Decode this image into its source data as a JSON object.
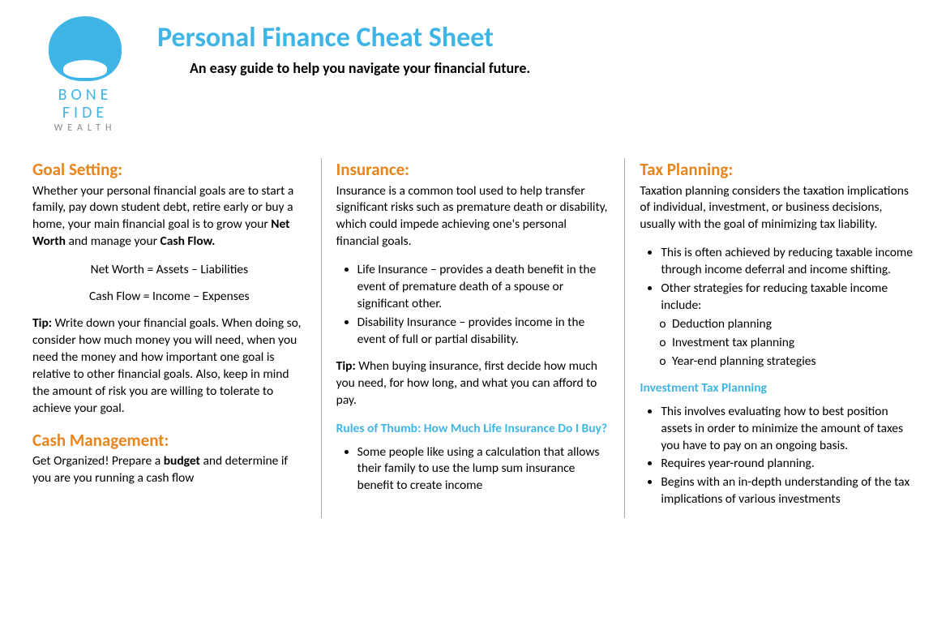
{
  "logo": {
    "line1": "BONE",
    "line2": "FIDE",
    "line3": "WEALTH"
  },
  "header": {
    "title": "Personal Finance Cheat Sheet",
    "subtitle": "An easy guide to help you navigate your financial future."
  },
  "colors": {
    "accent_blue": "#3fb5e6",
    "accent_orange": "#e8841c",
    "text": "#000000",
    "divider": "#aaaaaa"
  },
  "col1": {
    "section1_title": "Goal Setting:",
    "section1_intro_a": "Whether your personal financial goals are to start a family, pay down student debt, retire early or buy a home, your main financial goal is to grow your ",
    "section1_bold1": "Net Worth",
    "section1_intro_b": " and manage your ",
    "section1_bold2": "Cash Flow.",
    "formula1": "Net Worth = Assets – Liabilities",
    "formula2": "Cash Flow = Income – Expenses",
    "tip_label": "Tip:",
    "tip_text": " Write down your financial goals.  When doing so, consider how much money you will need, when you need the money and how important one goal is relative to other financial goals.  Also, keep in mind the amount of risk you are willing to tolerate to achieve your goal.",
    "section2_title": "Cash Management:",
    "section2_a": "Get Organized! Prepare a ",
    "section2_bold": "budget",
    "section2_b": " and determine if you are you running a cash flow"
  },
  "col2": {
    "section1_title": "Insurance:",
    "intro": "Insurance is a common tool used to help transfer significant risks such as premature death or disability, which could impede achieving one's personal financial goals.",
    "bullets": [
      "Life Insurance – provides a death benefit in the event of premature death of a spouse or significant other.",
      "Disability Insurance – provides income in the event of full or partial disability."
    ],
    "tip_label": "Tip:",
    "tip_text": " When buying insurance, first decide how much you need, for how long, and what you can afford to pay.",
    "rules_heading": "Rules of Thumb: How Much Life Insurance Do I Buy?",
    "rules_bullets": [
      "Some people like using a calculation that allows their family to use the lump sum insurance benefit to create income"
    ]
  },
  "col3": {
    "section1_title": "Tax Planning:",
    "intro": "Taxation planning considers the taxation implications of individual, investment, or business decisions, usually with the goal of minimizing tax liability.",
    "bullets1": [
      "This is often achieved by reducing taxable income through income deferral and income shifting.",
      "Other strategies for reducing taxable income include:"
    ],
    "sub_bullets": [
      "Deduction planning",
      "Investment tax planning",
      "Year-end planning strategies"
    ],
    "sub_heading": "Investment Tax Planning",
    "bullets2": [
      "This involves evaluating how to best position assets in order to minimize the amount of taxes you have to pay on an ongoing basis.",
      "Requires year-round planning.",
      "Begins with an in-depth understanding of the tax implications of various investments"
    ]
  }
}
